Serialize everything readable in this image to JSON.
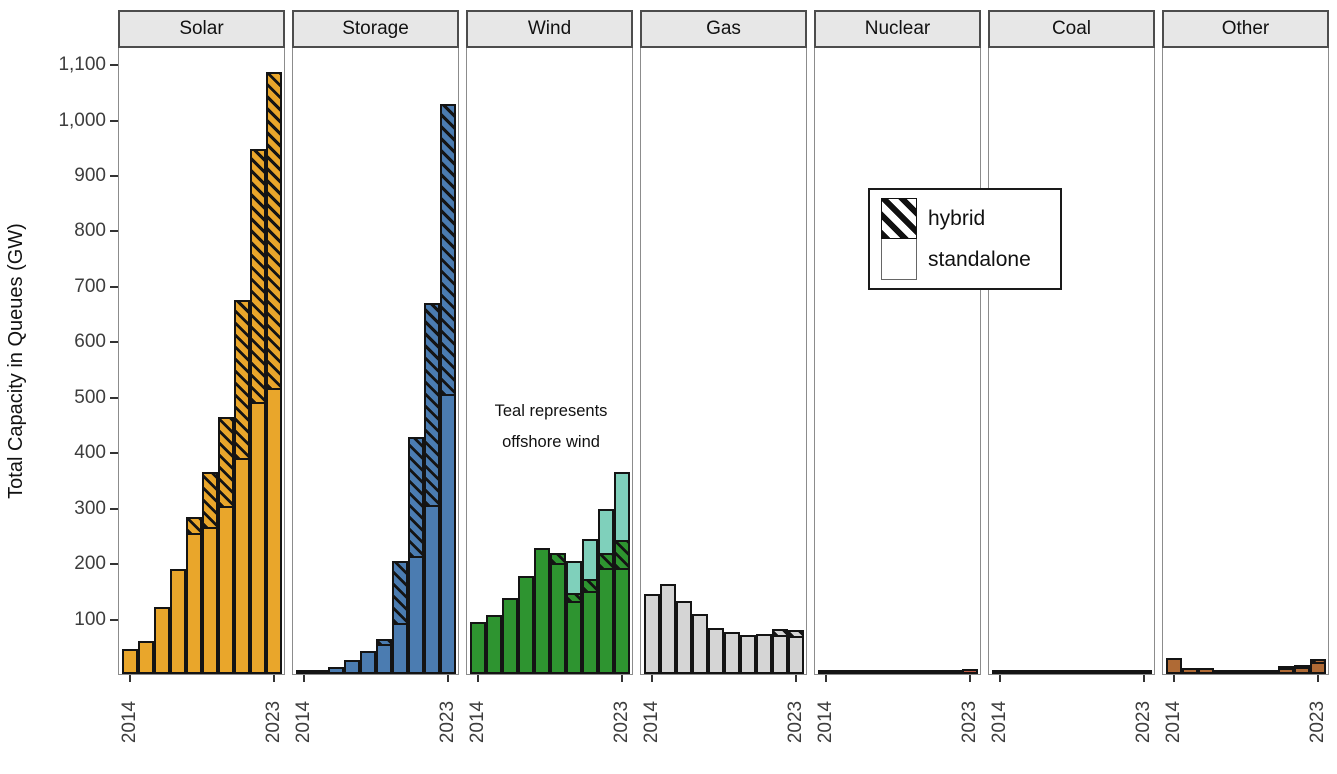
{
  "y_axis": {
    "title": "Total Capacity in Queues (GW)",
    "tick_values": [
      100,
      200,
      300,
      400,
      500,
      600,
      700,
      800,
      900,
      1000,
      1100
    ],
    "tick_labels": [
      "100",
      "200",
      "300",
      "400",
      "500",
      "600",
      "700",
      "800",
      "900",
      "1,000",
      "1,100"
    ]
  },
  "x_axis": {
    "shown_tick_labels": [
      "2014",
      "2023"
    ]
  },
  "legend": {
    "items": [
      {
        "label": "hybrid",
        "pattern": "hatch"
      },
      {
        "label": "standalone",
        "pattern": "solid"
      }
    ]
  },
  "annotation": {
    "line1": "Teal represents",
    "line2": "offshore wind"
  },
  "colors": {
    "solar": "#E9A62B",
    "storage": "#4B7CB1",
    "wind": "#2E9430",
    "wind_offshore": "#7FD0BB",
    "gas": "#D5D5D5",
    "nuclear": "#C05A45",
    "coal": "#4A4A4A",
    "other": "#AF6A35",
    "hatch_stripe": "#141414",
    "panel_header_bg": "#E7E7E7"
  },
  "chart_data": {
    "type": "bar",
    "stacked": true,
    "units": "GW",
    "title": "",
    "xlabel": "",
    "ylabel": "Total Capacity in Queues (GW)",
    "ylim": [
      0,
      1130
    ],
    "grid": false,
    "legend_position": "inside top, over Nuclear/Coal panels",
    "years": [
      2014,
      2015,
      2016,
      2017,
      2018,
      2019,
      2020,
      2021,
      2022,
      2023
    ],
    "facets": [
      {
        "name": "Solar",
        "color_key": "solar",
        "standalone": [
          46,
          60,
          120,
          190,
          255,
          265,
          303,
          390,
          490,
          515
        ],
        "hybrid": [
          0,
          0,
          0,
          0,
          28,
          100,
          160,
          285,
          457,
          570
        ],
        "offshore": [
          0,
          0,
          0,
          0,
          0,
          0,
          0,
          0,
          0,
          0
        ]
      },
      {
        "name": "Storage",
        "color_key": "storage",
        "standalone": [
          3,
          7,
          13,
          25,
          42,
          55,
          92,
          212,
          305,
          505
        ],
        "hybrid": [
          0,
          0,
          0,
          0,
          0,
          8,
          112,
          215,
          365,
          523
        ],
        "offshore": [
          0,
          0,
          0,
          0,
          0,
          0,
          0,
          0,
          0,
          0
        ]
      },
      {
        "name": "Wind",
        "color_key": "wind",
        "standalone": [
          94,
          107,
          137,
          177,
          228,
          201,
          132,
          150,
          192,
          192
        ],
        "hybrid": [
          0,
          0,
          0,
          0,
          0,
          17,
          15,
          21,
          26,
          50
        ],
        "offshore": [
          0,
          0,
          0,
          0,
          0,
          0,
          57,
          72,
          80,
          123
        ]
      },
      {
        "name": "Gas",
        "color_key": "gas",
        "standalone": [
          145,
          162,
          132,
          108,
          83,
          75,
          70,
          73,
          70,
          69
        ],
        "hybrid": [
          0,
          0,
          0,
          0,
          0,
          0,
          0,
          0,
          11,
          10
        ],
        "offshore": [
          0,
          0,
          0,
          0,
          0,
          0,
          0,
          0,
          0,
          0
        ]
      },
      {
        "name": "Nuclear",
        "color_key": "nuclear",
        "standalone": [
          8,
          6,
          2,
          1,
          1,
          1,
          2,
          3,
          5,
          9
        ],
        "hybrid": [
          0,
          0,
          0,
          0,
          0,
          0,
          0,
          0,
          0,
          0
        ],
        "offshore": [
          0,
          0,
          0,
          0,
          0,
          0,
          0,
          0,
          0,
          0
        ]
      },
      {
        "name": "Coal",
        "color_key": "coal",
        "standalone": [
          3,
          1,
          1,
          0.5,
          0.5,
          0.5,
          0.5,
          0.5,
          1,
          1
        ],
        "hybrid": [
          0,
          0,
          0,
          0,
          0,
          0,
          0,
          0,
          0,
          0
        ],
        "offshore": [
          0,
          0,
          0,
          0,
          0,
          0,
          0,
          0,
          0,
          0
        ]
      },
      {
        "name": "Other",
        "color_key": "other",
        "standalone": [
          28,
          11,
          10,
          5,
          6,
          3,
          5,
          11,
          13,
          22
        ],
        "hybrid": [
          0,
          0,
          0,
          0,
          0,
          0,
          0,
          2,
          3,
          6
        ],
        "offshore": [
          0,
          0,
          0,
          0,
          0,
          0,
          0,
          0,
          0,
          0
        ]
      }
    ]
  }
}
